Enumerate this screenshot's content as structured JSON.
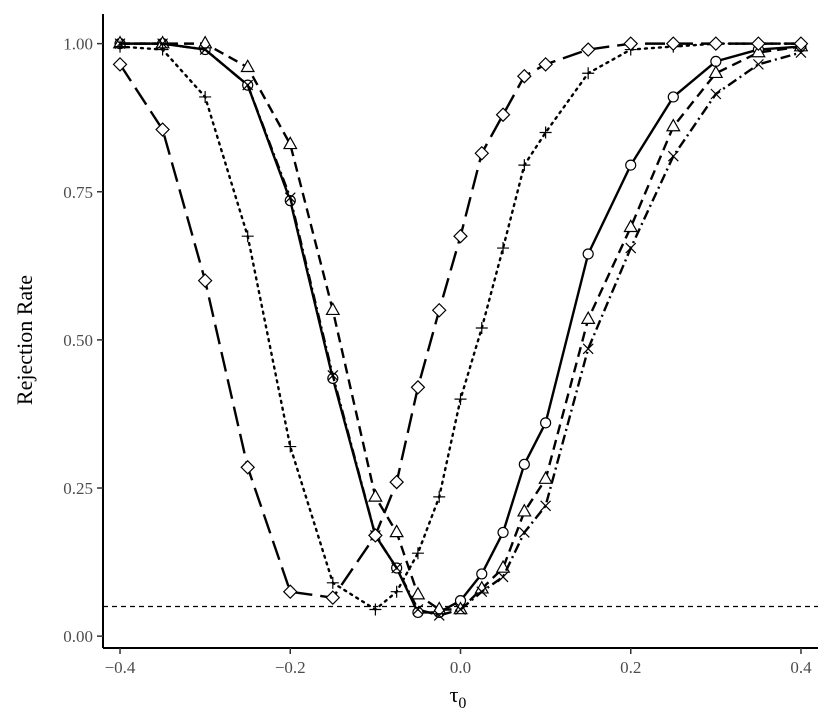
{
  "chart_data": {
    "type": "line",
    "title": "",
    "xlabel_base": "τ",
    "xlabel_sub": "0",
    "ylabel": "Rejection Rate",
    "xlim": [
      -0.42,
      0.42
    ],
    "ylim": [
      -0.02,
      1.05
    ],
    "x_ticks": [
      -0.4,
      -0.2,
      0.0,
      0.2,
      0.4
    ],
    "x_tick_labels": [
      "−0.4",
      "−0.2",
      "0.0",
      "0.2",
      "0.4"
    ],
    "y_ticks": [
      0.0,
      0.25,
      0.5,
      0.75,
      1.0
    ],
    "y_tick_labels": [
      "0.00",
      "0.25",
      "0.50",
      "0.75",
      "1.00"
    ],
    "reference_line": {
      "y": 0.05,
      "style": "dashed"
    },
    "grid": false,
    "legend": "none",
    "series": [
      {
        "marker": "circle",
        "line_style": "solid",
        "x": [
          -0.4,
          -0.35,
          -0.3,
          -0.25,
          -0.2,
          -0.15,
          -0.1,
          -0.075,
          -0.05,
          -0.025,
          0.0,
          0.025,
          0.05,
          0.075,
          0.1,
          0.15,
          0.2,
          0.25,
          0.3,
          0.35,
          0.4
        ],
        "y": [
          1.0,
          1.0,
          0.99,
          0.93,
          0.735,
          0.435,
          0.17,
          0.115,
          0.04,
          0.04,
          0.06,
          0.105,
          0.175,
          0.29,
          0.36,
          0.645,
          0.795,
          0.91,
          0.97,
          0.99,
          0.995
        ]
      },
      {
        "marker": "triangle",
        "line_style": "dashed",
        "x": [
          -0.4,
          -0.35,
          -0.3,
          -0.25,
          -0.2,
          -0.15,
          -0.1,
          -0.075,
          -0.05,
          -0.025,
          0.0,
          0.025,
          0.05,
          0.075,
          0.1,
          0.15,
          0.2,
          0.25,
          0.3,
          0.35,
          0.4
        ],
        "y": [
          1.0,
          1.0,
          1.0,
          0.96,
          0.83,
          0.55,
          0.235,
          0.175,
          0.07,
          0.045,
          0.045,
          0.08,
          0.115,
          0.21,
          0.265,
          0.535,
          0.69,
          0.86,
          0.95,
          0.985,
          0.995
        ]
      },
      {
        "marker": "plus",
        "line_style": "dotted",
        "x": [
          -0.4,
          -0.35,
          -0.3,
          -0.25,
          -0.2,
          -0.15,
          -0.1,
          -0.075,
          -0.05,
          -0.025,
          0.0,
          0.025,
          0.05,
          0.075,
          0.1,
          0.15,
          0.2,
          0.25,
          0.3,
          0.35,
          0.4
        ],
        "y": [
          0.995,
          0.99,
          0.91,
          0.675,
          0.32,
          0.09,
          0.045,
          0.075,
          0.14,
          0.235,
          0.4,
          0.52,
          0.655,
          0.795,
          0.85,
          0.95,
          0.99,
          0.995,
          1.0,
          1.0,
          1.0
        ]
      },
      {
        "marker": "cross",
        "line_style": "dashdot",
        "x": [
          -0.4,
          -0.35,
          -0.3,
          -0.25,
          -0.2,
          -0.15,
          -0.1,
          -0.075,
          -0.05,
          -0.025,
          0.0,
          0.025,
          0.05,
          0.075,
          0.1,
          0.15,
          0.2,
          0.25,
          0.3,
          0.35,
          0.4
        ],
        "y": [
          1.0,
          1.0,
          0.99,
          0.93,
          0.74,
          0.44,
          0.17,
          0.115,
          0.045,
          0.035,
          0.045,
          0.075,
          0.1,
          0.175,
          0.22,
          0.485,
          0.655,
          0.81,
          0.915,
          0.965,
          0.985
        ]
      },
      {
        "marker": "diamond",
        "line_style": "longdash",
        "x": [
          -0.4,
          -0.35,
          -0.3,
          -0.25,
          -0.2,
          -0.15,
          -0.1,
          -0.075,
          -0.05,
          -0.025,
          0.0,
          0.025,
          0.05,
          0.075,
          0.1,
          0.15,
          0.2,
          0.25,
          0.3,
          0.35,
          0.4
        ],
        "y": [
          0.965,
          0.855,
          0.6,
          0.285,
          0.075,
          0.065,
          0.17,
          0.26,
          0.42,
          0.55,
          0.675,
          0.815,
          0.88,
          0.945,
          0.965,
          0.99,
          1.0,
          1.0,
          1.0,
          1.0,
          1.0
        ]
      }
    ]
  }
}
